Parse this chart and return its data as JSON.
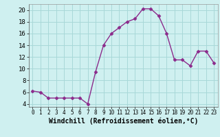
{
  "x": [
    0,
    1,
    2,
    3,
    4,
    5,
    6,
    7,
    8,
    9,
    10,
    11,
    12,
    13,
    14,
    15,
    16,
    17,
    18,
    19,
    20,
    21,
    22,
    23
  ],
  "y": [
    6.2,
    6.0,
    5.0,
    5.0,
    5.0,
    5.0,
    5.0,
    4.0,
    9.5,
    14.0,
    16.0,
    17.0,
    18.0,
    18.5,
    20.2,
    20.2,
    19.0,
    16.0,
    11.5,
    11.5,
    10.5,
    13.0,
    13.0,
    11.0
  ],
  "line_color": "#8b2a8b",
  "marker": "D",
  "marker_size": 2.5,
  "bg_color": "#cff0f0",
  "grid_color": "#a8d8d8",
  "xlabel": "Windchill (Refroidissement éolien,°C)",
  "xlabel_fontsize": 7,
  "ylim": [
    3.5,
    21
  ],
  "xlim": [
    -0.5,
    23.5
  ],
  "yticks": [
    4,
    6,
    8,
    10,
    12,
    14,
    16,
    18,
    20
  ],
  "xticks": [
    0,
    1,
    2,
    3,
    4,
    5,
    6,
    7,
    8,
    9,
    10,
    11,
    12,
    13,
    14,
    15,
    16,
    17,
    18,
    19,
    20,
    21,
    22,
    23
  ],
  "xtick_fontsize": 5.5,
  "ytick_fontsize": 6.5,
  "linewidth": 1.0
}
